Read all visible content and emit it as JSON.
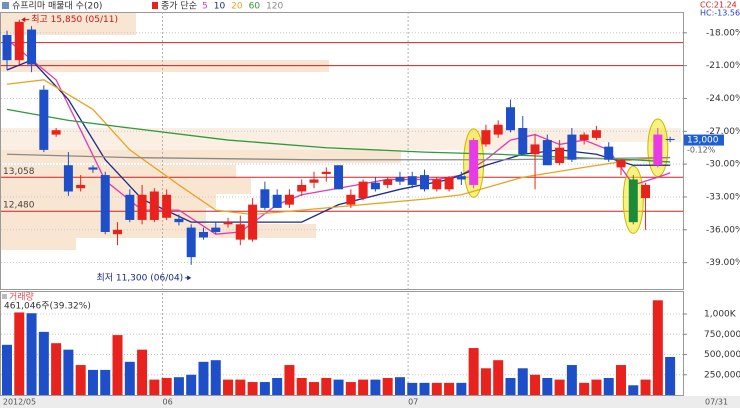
{
  "header": {
    "title": "슈프리마 매물대 수(20)",
    "ma_prefix": "종가 단순",
    "cc": "CC:21.24",
    "hc": "HC:-13.56"
  },
  "chart_data": [
    {
      "type": "candlestick",
      "categories": [
        "2012/05",
        null,
        null,
        null,
        null,
        null,
        null,
        null,
        null,
        null,
        null,
        null,
        null,
        "06",
        null,
        null,
        null,
        null,
        null,
        null,
        null,
        null,
        null,
        null,
        null,
        null,
        null,
        null,
        null,
        null,
        null,
        null,
        null,
        "07",
        null,
        null,
        null,
        null,
        null,
        null,
        null,
        null,
        null,
        null,
        null,
        null,
        null,
        null,
        null,
        null,
        null,
        null,
        null,
        null,
        null
      ],
      "x_end": "07/31",
      "open": [
        -18.2,
        -20.5,
        -17.7,
        -23.2,
        -27.3,
        -30.1,
        -32.2,
        -30.3,
        -31.0,
        -36.4,
        -32.8,
        -35.1,
        -35.1,
        -34.9,
        -35.0,
        -35.8,
        -36.2,
        -35.8,
        -35.5,
        -36.9,
        -36.9,
        -32.3,
        -32.8,
        -33.7,
        -32.5,
        -31.7,
        -30.9,
        -30.1,
        -33.7,
        -33.1,
        -31.7,
        -31.9,
        -31.2,
        -31.1,
        -31.0,
        -32.3,
        -32.3,
        -31.1,
        -31.9,
        -28.2,
        -27.3,
        -24.8,
        -26.7,
        -29.1,
        -27.8,
        -29.9,
        -27.3,
        -27.8,
        -27.6,
        -28.4,
        -30.3,
        -31.4,
        -33.1,
        -30.1,
        -27.7
      ],
      "high": [
        -17.8,
        -16.8,
        -17.4,
        -22.8,
        -26.7,
        -28.9,
        -31.0,
        -30.1,
        -30.7,
        -35.3,
        -32.3,
        -31.9,
        -32.2,
        -32.3,
        -34.6,
        -35.5,
        -35.8,
        -35.3,
        -34.9,
        -34.7,
        -33.1,
        -31.6,
        -32.3,
        -32.3,
        -31.4,
        -30.7,
        -30.3,
        -30.1,
        -32.3,
        -31.4,
        -31.2,
        -31.2,
        -30.7,
        -30.7,
        -30.5,
        -31.2,
        -31.1,
        -30.7,
        -27.6,
        -26.4,
        -26.0,
        -24.1,
        -25.6,
        -27.3,
        -27.3,
        -27.8,
        -26.7,
        -27.1,
        -26.5,
        -28.0,
        -29.6,
        -31.0,
        -31.7,
        -26.7,
        -27.5
      ],
      "low": [
        -21.4,
        -20.9,
        -21.6,
        -28.9,
        -27.5,
        -32.9,
        -32.5,
        -30.8,
        -36.4,
        -37.4,
        -35.3,
        -35.5,
        -35.3,
        -35.1,
        -35.6,
        -39.2,
        -36.9,
        -36.4,
        -35.8,
        -37.4,
        -37.1,
        -34.2,
        -34.0,
        -34.0,
        -32.9,
        -32.2,
        -31.6,
        -32.3,
        -34.0,
        -33.3,
        -32.5,
        -32.2,
        -31.9,
        -32.2,
        -32.5,
        -32.5,
        -32.5,
        -31.9,
        -32.2,
        -28.4,
        -27.6,
        -27.1,
        -29.1,
        -32.3,
        -30.1,
        -30.1,
        -29.8,
        -28.2,
        -27.8,
        -29.8,
        -31.0,
        -35.5,
        -36.0,
        -30.3,
        -28.0
      ],
      "close": [
        -20.5,
        -17.0,
        -20.9,
        -28.7,
        -26.9,
        -32.5,
        -31.9,
        -30.5,
        -36.2,
        -36.0,
        -35.1,
        -32.8,
        -32.5,
        -32.8,
        -35.3,
        -38.5,
        -36.7,
        -36.2,
        -35.3,
        -35.5,
        -33.7,
        -34.0,
        -34.0,
        -32.8,
        -31.9,
        -31.4,
        -30.7,
        -32.3,
        -32.8,
        -31.6,
        -32.3,
        -31.4,
        -31.6,
        -31.9,
        -32.3,
        -31.4,
        -31.2,
        -31.4,
        -27.8,
        -26.9,
        -26.4,
        -26.9,
        -29.1,
        -28.2,
        -30.1,
        -28.5,
        -29.6,
        -27.3,
        -26.9,
        -29.6,
        -29.6,
        -35.3,
        -31.9,
        -27.3,
        -27.8
      ],
      "up_color": "#e8231d",
      "down_color": "#1f4fc8",
      "highlights": [
        {
          "index": 38,
          "color": "#e63be6"
        },
        {
          "index": 51,
          "color": "#1d8a3a"
        },
        {
          "index": 53,
          "color": "#e63be6"
        }
      ],
      "ring_color": "#f2ea1a",
      "ylim": [
        -41.5,
        -16.1
      ],
      "yticks": [
        {
          "value": -18,
          "label": "-18.00%"
        },
        {
          "value": -21,
          "label": "-21.00%"
        },
        {
          "value": -24,
          "label": "-24.00%"
        },
        {
          "value": -27,
          "label": "-27.00%"
        },
        {
          "value": -30,
          "label": "-30.00%"
        },
        {
          "value": -33,
          "label": "-33.00%"
        },
        {
          "value": -36,
          "label": "-36.00%"
        },
        {
          "value": -39,
          "label": "-39.00%"
        }
      ],
      "grid": true,
      "moving_averages": [
        {
          "name": "5",
          "color": "#e23ab4",
          "x": [
            0,
            4,
            6,
            8,
            11,
            14,
            17,
            19,
            22,
            24,
            27,
            31,
            35,
            37,
            39,
            41,
            43,
            45,
            47,
            49,
            51,
            53,
            54
          ],
          "values": [
            -18.6,
            -22.3,
            -26.9,
            -31.5,
            -34.2,
            -34.2,
            -36.4,
            -36.2,
            -33.7,
            -32.8,
            -32.2,
            -31.4,
            -31.4,
            -31.0,
            -29.6,
            -27.8,
            -27.3,
            -28.2,
            -27.8,
            -28.7,
            -31.9,
            -31.2,
            -30.8
          ]
        },
        {
          "name": "10",
          "color": "#1c2a88",
          "x": [
            0,
            2,
            5,
            8,
            11,
            15,
            20,
            24,
            27,
            32,
            36,
            39,
            42,
            45,
            48,
            51,
            54
          ],
          "values": [
            -21.4,
            -20.5,
            -24.1,
            -29.6,
            -33.2,
            -35.3,
            -35.3,
            -35.3,
            -33.7,
            -32.3,
            -31.4,
            -30.1,
            -29.1,
            -28.7,
            -29.1,
            -30.1,
            -30.1
          ]
        },
        {
          "name": "20",
          "color": "#e8a424",
          "x": [
            0,
            3,
            7,
            10,
            14,
            17,
            20,
            24,
            29,
            34,
            37,
            42,
            47,
            51,
            54
          ],
          "values": [
            -22.7,
            -22.3,
            -25.0,
            -28.7,
            -31.9,
            -34.2,
            -34.6,
            -34.2,
            -33.7,
            -33.2,
            -32.8,
            -31.2,
            -30.3,
            -29.6,
            -29.4
          ]
        },
        {
          "name": "60",
          "color": "#2e9a3a",
          "x": [
            0,
            5,
            10,
            18,
            26,
            34,
            40,
            46,
            51,
            54
          ],
          "values": [
            -25.0,
            -26.0,
            -26.7,
            -27.8,
            -28.5,
            -28.9,
            -29.1,
            -29.4,
            -29.6,
            -29.8
          ]
        },
        {
          "name": "120",
          "color": "#8a8a8a",
          "x": [
            0,
            10,
            25,
            40,
            54
          ],
          "values": [
            -29.1,
            -29.4,
            -29.6,
            -29.6,
            -29.4
          ]
        }
      ],
      "levels": [
        {
          "value": -18.9
        },
        {
          "value": -21.0
        },
        {
          "value": -31.2,
          "label": "13,058"
        },
        {
          "value": -34.3,
          "label": "12,480"
        }
      ],
      "level_color": "#d42020",
      "annotations": [
        {
          "text": "최고 15,850 (05/11)",
          "index": 1,
          "value": -16.8,
          "color": "#c81818"
        },
        {
          "text": "최저 11,300 (06/04)",
          "index": 15,
          "value": -39.2,
          "color": "#1c2a88"
        }
      ],
      "last": {
        "label": "13,000",
        "change": "-0.12%",
        "value": -27.8,
        "color": "#1f5fd0"
      }
    },
    {
      "type": "bar",
      "title": "거래량",
      "subtitle": "461,046주(39.32%)",
      "values": [
        620000,
        1020000,
        1010000,
        780000,
        640000,
        560000,
        370000,
        310000,
        310000,
        740000,
        410000,
        560000,
        190000,
        210000,
        220000,
        250000,
        410000,
        430000,
        190000,
        190000,
        160000,
        160000,
        210000,
        370000,
        210000,
        160000,
        210000,
        190000,
        160000,
        190000,
        190000,
        210000,
        220000,
        150000,
        150000,
        150000,
        150000,
        150000,
        580000,
        330000,
        430000,
        210000,
        330000,
        250000,
        210000,
        190000,
        370000,
        150000,
        190000,
        210000,
        370000,
        120000,
        190000,
        1170000,
        470000
      ],
      "ylim": [
        0,
        1260000
      ],
      "yticks": [
        {
          "value": 250000,
          "label": "250,000"
        },
        {
          "value": 500000,
          "label": "500,000"
        },
        {
          "value": 750000,
          "label": "750,000"
        },
        {
          "value": 1000000,
          "label": "1,000K"
        }
      ],
      "grid": true
    }
  ]
}
